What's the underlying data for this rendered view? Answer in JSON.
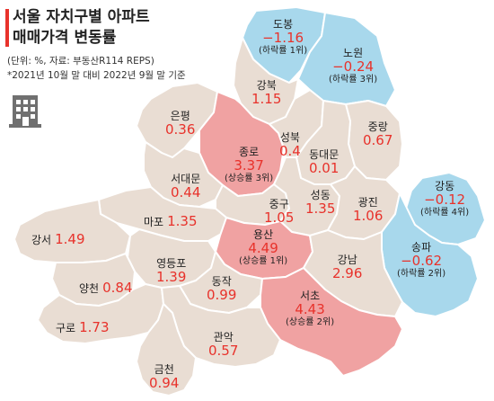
{
  "title": {
    "line1": "서울 자치구별 아파트",
    "line2": "매매가격 변동률"
  },
  "notes": {
    "unit": "(단위: %, 자료: 부동산R114 REPS)",
    "period": "*2021년 10월 말 대비 2022년 9월 말 기준"
  },
  "icon": "building-icon",
  "colors": {
    "rise_top": "#f0a2a2",
    "fall": "#a8d8ec",
    "neutral": "#e9ddd3",
    "border": "#ffffff",
    "value": "#e8322b"
  },
  "districts": [
    {
      "id": "dobong",
      "name": "도봉",
      "value": "−1.16",
      "rank": "(하락률 1위)",
      "trend": "fall"
    },
    {
      "id": "nowon",
      "name": "노원",
      "value": "−0.24",
      "rank": "(하락률 3위)",
      "trend": "fall"
    },
    {
      "id": "gangbuk",
      "name": "강북",
      "value": "1.15",
      "trend": "neutral"
    },
    {
      "id": "eunpyeong",
      "name": "은평",
      "value": "0.36",
      "trend": "neutral"
    },
    {
      "id": "jongno",
      "name": "종로",
      "value": "3.37",
      "rank": "(상승률 3위)",
      "trend": "rise"
    },
    {
      "id": "seongbuk",
      "name": "성북",
      "value": "0.4",
      "trend": "neutral"
    },
    {
      "id": "jungnang",
      "name": "중랑",
      "value": "0.67",
      "trend": "neutral"
    },
    {
      "id": "dongdaemun",
      "name": "동대문",
      "value": "0.01",
      "trend": "neutral"
    },
    {
      "id": "seodaemun",
      "name": "서대문",
      "value": "0.44",
      "trend": "neutral"
    },
    {
      "id": "gangdong",
      "name": "강동",
      "value": "−0.12",
      "rank": "(하락률 4위)",
      "trend": "fall"
    },
    {
      "id": "junggu",
      "name": "중구",
      "value": "1.05",
      "trend": "neutral"
    },
    {
      "id": "seongdong",
      "name": "성동",
      "value": "1.35",
      "trend": "neutral"
    },
    {
      "id": "gwangjin",
      "name": "광진",
      "value": "1.06",
      "trend": "neutral"
    },
    {
      "id": "mapo",
      "name": "마포",
      "value": "1.35",
      "trend": "neutral"
    },
    {
      "id": "gangseo",
      "name": "강서",
      "value": "1.49",
      "trend": "neutral"
    },
    {
      "id": "yongsan",
      "name": "용산",
      "value": "4.49",
      "rank": "(상승률 1위)",
      "trend": "rise"
    },
    {
      "id": "songpa",
      "name": "송파",
      "value": "−0.62",
      "rank": "(하락률 2위)",
      "trend": "fall"
    },
    {
      "id": "gangnam",
      "name": "강남",
      "value": "2.96",
      "trend": "neutral"
    },
    {
      "id": "yeongdeungpo",
      "name": "영등포",
      "value": "1.39",
      "trend": "neutral"
    },
    {
      "id": "dongjak",
      "name": "동작",
      "value": "0.99",
      "trend": "neutral"
    },
    {
      "id": "yangcheon",
      "name": "양천",
      "value": "0.84",
      "trend": "neutral"
    },
    {
      "id": "seocho",
      "name": "서초",
      "value": "4.43",
      "rank": "(상승률 2위)",
      "trend": "rise"
    },
    {
      "id": "guro",
      "name": "구로",
      "value": "1.73",
      "trend": "neutral"
    },
    {
      "id": "gwanak",
      "name": "관악",
      "value": "0.57",
      "trend": "neutral"
    },
    {
      "id": "geumcheon",
      "name": "금천",
      "value": "0.94",
      "trend": "neutral"
    }
  ]
}
